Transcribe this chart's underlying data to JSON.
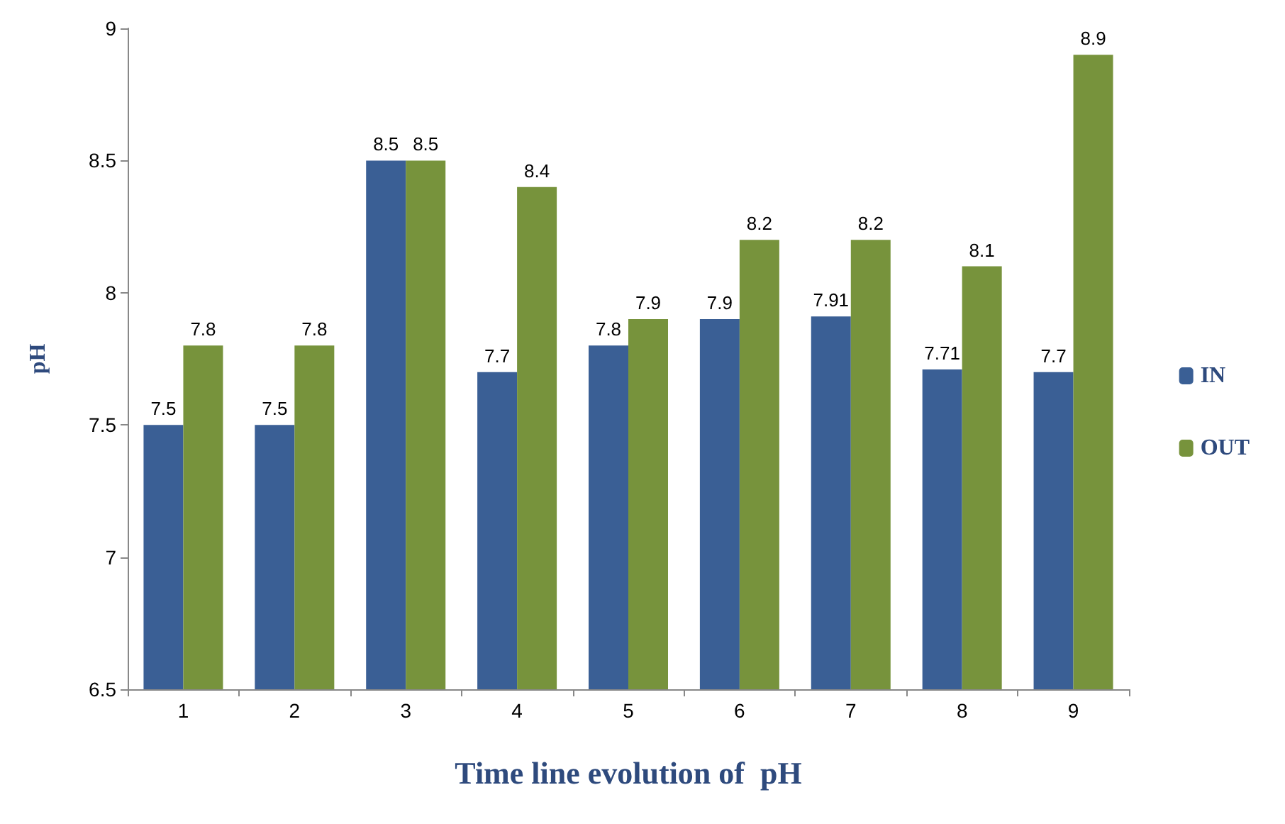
{
  "chart_data": {
    "type": "bar",
    "xlabel": "Time line evolution of  pH",
    "ylabel": "pH",
    "categories": [
      "1",
      "2",
      "3",
      "4",
      "5",
      "6",
      "7",
      "8",
      "9"
    ],
    "series": [
      {
        "name": "IN",
        "color": "#3a5f95",
        "values": [
          7.5,
          7.5,
          8.5,
          7.7,
          7.8,
          7.9,
          7.91,
          7.71,
          7.7
        ]
      },
      {
        "name": "OUT",
        "color": "#77933c",
        "values": [
          7.8,
          7.8,
          8.5,
          8.4,
          7.9,
          8.2,
          8.2,
          8.1,
          8.9
        ]
      }
    ],
    "ylim": [
      6.5,
      9
    ],
    "yticks": [
      6.5,
      7,
      7.5,
      8,
      8.5,
      9
    ],
    "grid": false,
    "legend": "right",
    "data_labels": true
  }
}
